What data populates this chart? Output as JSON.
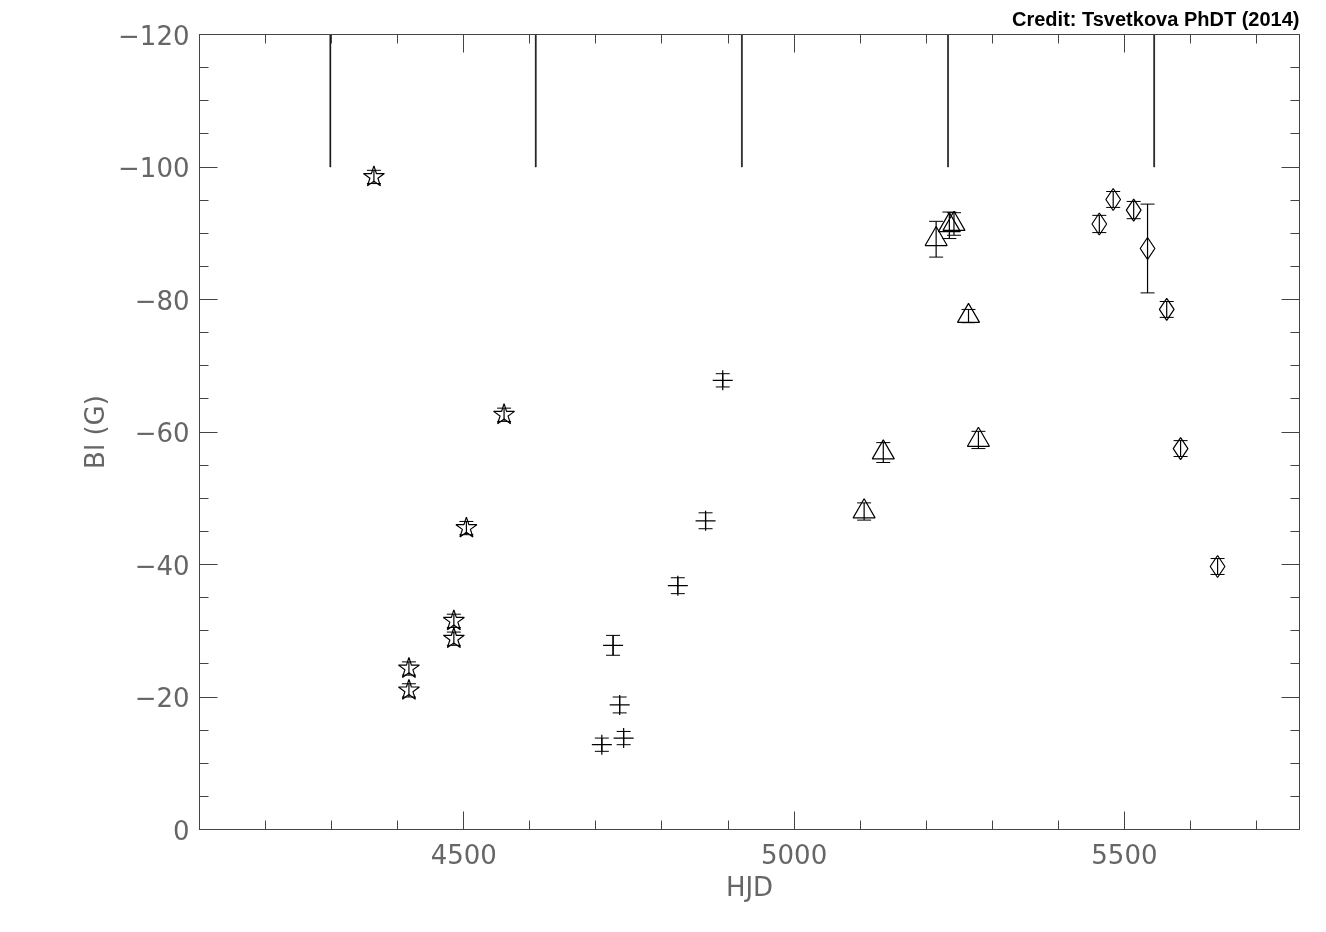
{
  "chart_data": {
    "type": "scatter",
    "xlabel": "HJD",
    "ylabel": "Bl (G)",
    "annotations": [
      "Credit: Tsvetkova PhDT (2014)"
    ],
    "xlim": [
      4100,
      5765
    ],
    "ylim": [
      0,
      -120
    ],
    "xticks": [
      {
        "value": 4200,
        "label": null
      },
      {
        "value": 4300,
        "label": null
      },
      {
        "value": 4400,
        "label": null
      },
      4500,
      {
        "value": 4600,
        "label": null
      },
      {
        "value": 4700,
        "label": null
      },
      {
        "value": 4800,
        "label": null
      },
      {
        "value": 4900,
        "label": null
      },
      5000,
      {
        "value": 5100,
        "label": null
      },
      {
        "value": 5200,
        "label": null
      },
      {
        "value": 5300,
        "label": null
      },
      {
        "value": 5400,
        "label": null
      },
      5500,
      {
        "value": 5600,
        "label": null
      },
      {
        "value": 5700,
        "label": null
      }
    ],
    "yticks": [
      {
        "value": 0,
        "label": "0"
      },
      {
        "value": -5,
        "label": null
      },
      {
        "value": -10,
        "label": null
      },
      {
        "value": -15,
        "label": null
      },
      {
        "value": -20,
        "label": "−20"
      },
      {
        "value": -25,
        "label": null
      },
      {
        "value": -30,
        "label": null
      },
      {
        "value": -35,
        "label": null
      },
      {
        "value": -40,
        "label": "−40"
      },
      {
        "value": -45,
        "label": null
      },
      {
        "value": -50,
        "label": null
      },
      {
        "value": -55,
        "label": null
      },
      {
        "value": -60,
        "label": "−60"
      },
      {
        "value": -65,
        "label": null
      },
      {
        "value": -70,
        "label": null
      },
      {
        "value": -75,
        "label": null
      },
      {
        "value": -80,
        "label": "−80"
      },
      {
        "value": -85,
        "label": null
      },
      {
        "value": -90,
        "label": null
      },
      {
        "value": -95,
        "label": null
      },
      {
        "value": -100,
        "label": "−100"
      },
      {
        "value": -105,
        "label": null
      },
      {
        "value": -110,
        "label": null
      },
      {
        "value": -115,
        "label": null
      },
      {
        "value": -120,
        "label": "−120"
      }
    ],
    "grid": false,
    "series": [
      {
        "color": "#000000",
        "marker": "star",
        "x": [
          4364,
          4561,
          4504,
          4485,
          4485,
          4417,
          4417
        ],
        "values": [
          -98.5,
          -62.6,
          -45.5,
          -31.5,
          -28.8,
          -24.3,
          -21.0
        ],
        "errors": [
          1,
          1,
          1,
          1,
          1,
          1,
          1
        ]
      },
      {
        "color": "#000000",
        "marker": "cross",
        "x": [
          4709,
          4726,
          4736,
          4742,
          4824,
          4866,
          4892
        ],
        "values": [
          -12.8,
          -27.8,
          -18.8,
          -13.8,
          -36.8,
          -46.6,
          -67.8
        ],
        "errors": [
          1,
          1.5,
          1.2,
          1,
          1.2,
          1.2,
          1
        ]
      },
      {
        "color": "#000000",
        "marker": "triangle",
        "x": [
          5106,
          5135,
          5279,
          5264,
          5215,
          5235,
          5242
        ],
        "values": [
          -48.0,
          -56.9,
          -58.8,
          -77.5,
          -89.1,
          -91.2,
          -91.4
        ],
        "errors": [
          1.3,
          1.5,
          1.3,
          1,
          2.7,
          2,
          1.7
        ]
      },
      {
        "color": "#000000",
        "marker": "diamond",
        "x": [
          5462,
          5483,
          5514,
          5535,
          5564,
          5585,
          5641
        ],
        "values": [
          -91.4,
          -95.1,
          -93.5,
          -87.7,
          -78.5,
          -57.5,
          -39.7
        ],
        "errors": [
          1.3,
          1.2,
          1.3,
          6.7,
          1.2,
          1.2,
          1.2
        ]
      },
      {
        "type": "bar",
        "color": "#000000",
        "x": [
          4298,
          4609,
          4921,
          5233,
          5545
        ],
        "base": [
          -100,
          -100,
          -100,
          -100,
          -100
        ],
        "values": [
          -20,
          -20,
          -20,
          -20,
          -20
        ]
      }
    ]
  }
}
